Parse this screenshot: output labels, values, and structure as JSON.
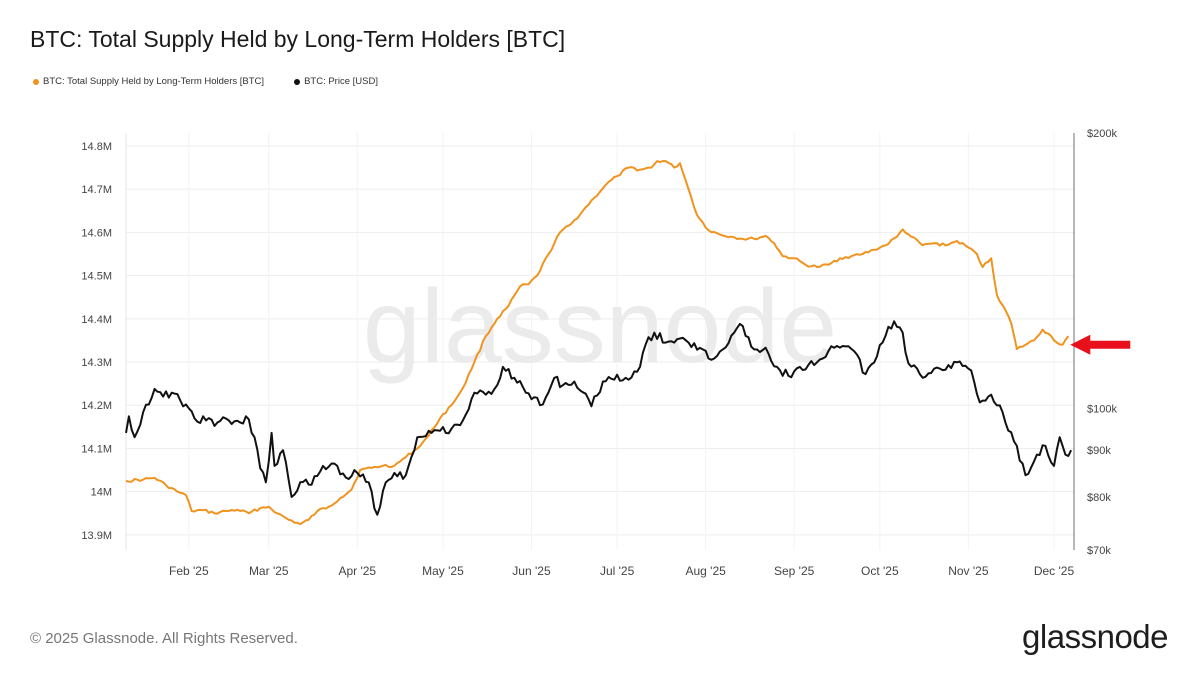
{
  "chart_data": {
    "type": "line",
    "title": "BTC: Total Supply Held by Long-Term Holders [BTC]",
    "x_labels": [
      "Feb '25",
      "Mar '25",
      "Apr '25",
      "May '25",
      "Jun '25",
      "Jul '25",
      "Aug '25",
      "Sep '25",
      "Oct '25",
      "Nov '25",
      "Dec '25"
    ],
    "left_axis": {
      "ticks": [
        "13.9M",
        "14M",
        "14.1M",
        "14.2M",
        "14.3M",
        "14.4M",
        "14.5M",
        "14.6M",
        "14.7M",
        "14.8M"
      ],
      "range": [
        13.865,
        14.83
      ]
    },
    "right_axis": {
      "scale": "log",
      "ticks": [
        "$70k",
        "$80k",
        "$90k",
        "$100k",
        "$200k"
      ],
      "range": [
        70000,
        200000
      ]
    },
    "grid": true,
    "legend_position": "top-left",
    "series": [
      {
        "name": "BTC: Total Supply Held by Long-Term Holders [BTC]",
        "axis": "left",
        "color": "#f0931f",
        "points": [
          [
            "2025-01-10",
            14.025
          ],
          [
            "2025-01-16",
            14.028
          ],
          [
            "2025-01-20",
            14.032
          ],
          [
            "2025-01-24",
            14.015
          ],
          [
            "2025-01-28",
            14.0
          ],
          [
            "2025-01-31",
            13.992
          ],
          [
            "2025-02-02",
            13.955
          ],
          [
            "2025-02-06",
            13.957
          ],
          [
            "2025-02-10",
            13.95
          ],
          [
            "2025-02-14",
            13.955
          ],
          [
            "2025-02-18",
            13.958
          ],
          [
            "2025-02-22",
            13.95
          ],
          [
            "2025-02-26",
            13.962
          ],
          [
            "2025-03-01",
            13.965
          ],
          [
            "2025-03-04",
            13.95
          ],
          [
            "2025-03-08",
            13.935
          ],
          [
            "2025-03-12",
            13.925
          ],
          [
            "2025-03-15",
            13.935
          ],
          [
            "2025-03-18",
            13.955
          ],
          [
            "2025-03-22",
            13.965
          ],
          [
            "2025-03-26",
            13.985
          ],
          [
            "2025-03-30",
            14.005
          ],
          [
            "2025-04-02",
            14.05
          ],
          [
            "2025-04-06",
            14.055
          ],
          [
            "2025-04-10",
            14.06
          ],
          [
            "2025-04-14",
            14.06
          ],
          [
            "2025-04-18",
            14.08
          ],
          [
            "2025-04-22",
            14.1
          ],
          [
            "2025-04-26",
            14.13
          ],
          [
            "2025-04-30",
            14.17
          ],
          [
            "2025-05-04",
            14.2
          ],
          [
            "2025-05-08",
            14.24
          ],
          [
            "2025-05-12",
            14.3
          ],
          [
            "2025-05-16",
            14.36
          ],
          [
            "2025-05-20",
            14.4
          ],
          [
            "2025-05-24",
            14.43
          ],
          [
            "2025-05-28",
            14.475
          ],
          [
            "2025-05-31",
            14.48
          ],
          [
            "2025-06-03",
            14.5
          ],
          [
            "2025-06-07",
            14.55
          ],
          [
            "2025-06-11",
            14.6
          ],
          [
            "2025-06-15",
            14.62
          ],
          [
            "2025-06-19",
            14.65
          ],
          [
            "2025-06-23",
            14.68
          ],
          [
            "2025-06-27",
            14.71
          ],
          [
            "2025-07-01",
            14.73
          ],
          [
            "2025-07-05",
            14.75
          ],
          [
            "2025-07-09",
            14.745
          ],
          [
            "2025-07-13",
            14.75
          ],
          [
            "2025-07-15",
            14.765
          ],
          [
            "2025-07-18",
            14.765
          ],
          [
            "2025-07-21",
            14.75
          ],
          [
            "2025-07-23",
            14.76
          ],
          [
            "2025-07-25",
            14.72
          ],
          [
            "2025-07-27",
            14.68
          ],
          [
            "2025-07-29",
            14.64
          ],
          [
            "2025-08-02",
            14.605
          ],
          [
            "2025-08-06",
            14.595
          ],
          [
            "2025-08-10",
            14.59
          ],
          [
            "2025-08-14",
            14.585
          ],
          [
            "2025-08-18",
            14.585
          ],
          [
            "2025-08-22",
            14.592
          ],
          [
            "2025-08-25",
            14.575
          ],
          [
            "2025-08-28",
            14.545
          ],
          [
            "2025-09-01",
            14.54
          ],
          [
            "2025-09-05",
            14.525
          ],
          [
            "2025-09-09",
            14.52
          ],
          [
            "2025-09-13",
            14.525
          ],
          [
            "2025-09-17",
            14.54
          ],
          [
            "2025-09-21",
            14.545
          ],
          [
            "2025-09-25",
            14.55
          ],
          [
            "2025-09-29",
            14.56
          ],
          [
            "2025-10-03",
            14.57
          ],
          [
            "2025-10-07",
            14.59
          ],
          [
            "2025-10-09",
            14.607
          ],
          [
            "2025-10-12",
            14.59
          ],
          [
            "2025-10-16",
            14.57
          ],
          [
            "2025-10-20",
            14.575
          ],
          [
            "2025-10-24",
            14.57
          ],
          [
            "2025-10-28",
            14.58
          ],
          [
            "2025-11-01",
            14.565
          ],
          [
            "2025-11-04",
            14.55
          ],
          [
            "2025-11-06",
            14.52
          ],
          [
            "2025-11-09",
            14.54
          ],
          [
            "2025-11-11",
            14.455
          ],
          [
            "2025-11-14",
            14.42
          ],
          [
            "2025-11-16",
            14.39
          ],
          [
            "2025-11-18",
            14.33
          ],
          [
            "2025-11-21",
            14.34
          ],
          [
            "2025-11-24",
            14.35
          ],
          [
            "2025-11-27",
            14.375
          ],
          [
            "2025-11-30",
            14.36
          ],
          [
            "2025-12-02",
            14.345
          ],
          [
            "2025-12-04",
            14.34
          ],
          [
            "2025-12-06",
            14.36
          ]
        ]
      },
      {
        "name": "BTC: Price [USD]",
        "axis": "right",
        "color": "#111111",
        "points": [
          [
            "2025-01-10",
            94000
          ],
          [
            "2025-01-11",
            98000
          ],
          [
            "2025-01-13",
            93000
          ],
          [
            "2025-01-16",
            99000
          ],
          [
            "2025-01-20",
            105000
          ],
          [
            "2025-01-23",
            103000
          ],
          [
            "2025-01-26",
            104000
          ],
          [
            "2025-01-29",
            102000
          ],
          [
            "2025-02-01",
            100000
          ],
          [
            "2025-02-03",
            97500
          ],
          [
            "2025-02-07",
            97000
          ],
          [
            "2025-02-11",
            96500
          ],
          [
            "2025-02-15",
            97000
          ],
          [
            "2025-02-19",
            96500
          ],
          [
            "2025-02-21",
            98000
          ],
          [
            "2025-02-24",
            93000
          ],
          [
            "2025-02-26",
            86000
          ],
          [
            "2025-02-28",
            83000
          ],
          [
            "2025-03-02",
            94000
          ],
          [
            "2025-03-03",
            86500
          ],
          [
            "2025-03-06",
            90000
          ],
          [
            "2025-03-09",
            80000
          ],
          [
            "2025-03-12",
            83000
          ],
          [
            "2025-03-16",
            82500
          ],
          [
            "2025-03-20",
            86500
          ],
          [
            "2025-03-24",
            87000
          ],
          [
            "2025-03-28",
            84000
          ],
          [
            "2025-04-01",
            85000
          ],
          [
            "2025-04-05",
            83000
          ],
          [
            "2025-04-08",
            76500
          ],
          [
            "2025-04-11",
            83000
          ],
          [
            "2025-04-14",
            85000
          ],
          [
            "2025-04-18",
            84500
          ],
          [
            "2025-04-22",
            93000
          ],
          [
            "2025-04-26",
            94500
          ],
          [
            "2025-04-30",
            94500
          ],
          [
            "2025-05-04",
            95000
          ],
          [
            "2025-05-08",
            97000
          ],
          [
            "2025-05-12",
            104000
          ],
          [
            "2025-05-16",
            103500
          ],
          [
            "2025-05-20",
            106000
          ],
          [
            "2025-05-22",
            111000
          ],
          [
            "2025-05-26",
            108000
          ],
          [
            "2025-05-30",
            104000
          ],
          [
            "2025-06-05",
            101000
          ],
          [
            "2025-06-09",
            108000
          ],
          [
            "2025-06-12",
            106000
          ],
          [
            "2025-06-16",
            107000
          ],
          [
            "2025-06-22",
            100500
          ],
          [
            "2025-06-26",
            107000
          ],
          [
            "2025-06-30",
            107500
          ],
          [
            "2025-07-04",
            108000
          ],
          [
            "2025-07-09",
            111000
          ],
          [
            "2025-07-11",
            117500
          ],
          [
            "2025-07-14",
            121000
          ],
          [
            "2025-07-18",
            118000
          ],
          [
            "2025-07-22",
            119000
          ],
          [
            "2025-07-26",
            118000
          ],
          [
            "2025-07-31",
            116000
          ],
          [
            "2025-08-03",
            113000
          ],
          [
            "2025-08-07",
            116000
          ],
          [
            "2025-08-11",
            121000
          ],
          [
            "2025-08-14",
            123000
          ],
          [
            "2025-08-18",
            116000
          ],
          [
            "2025-08-22",
            116500
          ],
          [
            "2025-08-26",
            111000
          ],
          [
            "2025-08-30",
            108500
          ],
          [
            "2025-09-03",
            111000
          ],
          [
            "2025-09-08",
            111500
          ],
          [
            "2025-09-13",
            115500
          ],
          [
            "2025-09-18",
            117000
          ],
          [
            "2025-09-22",
            115500
          ],
          [
            "2025-09-26",
            109000
          ],
          [
            "2025-09-30",
            114000
          ],
          [
            "2025-10-03",
            120000
          ],
          [
            "2025-10-06",
            124500
          ],
          [
            "2025-10-09",
            121000
          ],
          [
            "2025-10-11",
            112000
          ],
          [
            "2025-10-16",
            108000
          ],
          [
            "2025-10-20",
            110500
          ],
          [
            "2025-10-25",
            111500
          ],
          [
            "2025-10-29",
            112500
          ],
          [
            "2025-11-02",
            110000
          ],
          [
            "2025-11-05",
            101500
          ],
          [
            "2025-11-09",
            103500
          ],
          [
            "2025-11-13",
            99000
          ],
          [
            "2025-11-17",
            92000
          ],
          [
            "2025-11-21",
            84500
          ],
          [
            "2025-11-24",
            87500
          ],
          [
            "2025-11-28",
            91000
          ],
          [
            "2025-12-01",
            86500
          ],
          [
            "2025-12-03",
            93000
          ],
          [
            "2025-12-05",
            89000
          ],
          [
            "2025-12-07",
            90000
          ]
        ]
      }
    ],
    "annotations": [
      {
        "type": "arrow",
        "color": "#e8101b",
        "points_to": "BTC: Total Supply Held by Long-Term Holders [BTC]",
        "at": [
          "2025-12-06",
          14.34
        ]
      }
    ]
  },
  "watermark": "glassnode",
  "footer": {
    "copyright": "© 2025 Glassnode. All Rights Reserved.",
    "brand": "glassnode"
  }
}
